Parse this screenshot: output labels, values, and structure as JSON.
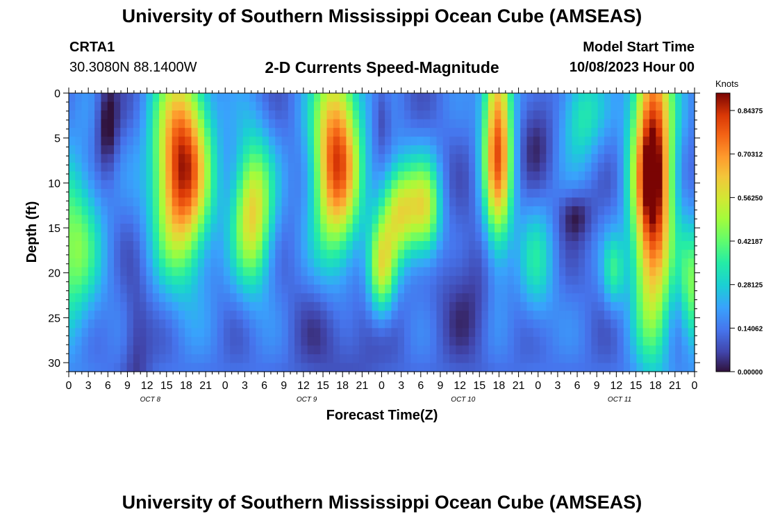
{
  "header": {
    "title": "University of Southern Mississippi Ocean Cube (AMSEAS)",
    "station": "CRTA1",
    "coords": "30.3080N  88.1400W",
    "subtitle": "2-D Currents Speed-Magnitude",
    "model_start_label": "Model Start Time",
    "model_start_value": "10/08/2023 Hour 00"
  },
  "footer": {
    "title": "University of Southern Mississippi Ocean Cube (AMSEAS)"
  },
  "chart_data": {
    "type": "heatmap",
    "xlabel": "Forecast Time(Z)",
    "ylabel": "Depth (ft)",
    "xlim": [
      0,
      96
    ],
    "ylim": [
      0,
      31
    ],
    "y_ticks": [
      0,
      5,
      10,
      15,
      20,
      25,
      30
    ],
    "x_tick_labels": [
      "0",
      "3",
      "6",
      "9",
      "12",
      "15",
      "18",
      "21",
      "0",
      "3",
      "6",
      "9",
      "12",
      "15",
      "18",
      "21",
      "0",
      "3",
      "6",
      "9",
      "12",
      "15",
      "18",
      "21",
      "0",
      "3",
      "6",
      "9",
      "12",
      "15",
      "18",
      "21",
      "0"
    ],
    "day_labels": [
      "OCT 8",
      "OCT 9",
      "OCT 10",
      "OCT 11"
    ],
    "colorbar": {
      "units": "Knots",
      "tick_labels": [
        "0.84375",
        "0.70312",
        "0.56250",
        "0.42187",
        "0.28125",
        "0.14062",
        "0.00000"
      ],
      "tick_values": [
        0.84375,
        0.703125,
        0.5625,
        0.421875,
        0.28125,
        0.140625,
        0.0
      ],
      "range": [
        0,
        0.9
      ]
    },
    "features": [
      {
        "t": 0,
        "d": 17,
        "st": 3.0,
        "sd": 7,
        "a": 0.33
      },
      {
        "t": 5.5,
        "d": 3,
        "st": 1.2,
        "sd": 4,
        "a": -0.16
      },
      {
        "t": 10,
        "d": 28,
        "st": 1.5,
        "sd": 5,
        "a": -0.1
      },
      {
        "t": 17,
        "d": 8,
        "st": 3.0,
        "sd": 8,
        "a": 0.75
      },
      {
        "t": 28,
        "d": 13,
        "st": 2.2,
        "sd": 6,
        "a": 0.48
      },
      {
        "t": 41,
        "d": 7,
        "st": 2.6,
        "sd": 8,
        "a": 0.68
      },
      {
        "t": 42,
        "d": 27,
        "st": 5.0,
        "sd": 5,
        "a": -0.08
      },
      {
        "t": 48,
        "d": 20,
        "st": 1.5,
        "sd": 4,
        "a": 0.38
      },
      {
        "t": 51,
        "d": 13,
        "st": 2.2,
        "sd": 4,
        "a": 0.45
      },
      {
        "t": 55,
        "d": 13,
        "st": 1.6,
        "sd": 4,
        "a": 0.35
      },
      {
        "t": 48,
        "d": 2,
        "st": 1.0,
        "sd": 3,
        "a": -0.1
      },
      {
        "t": 62,
        "d": 22,
        "st": 4.0,
        "sd": 6,
        "a": -0.08
      },
      {
        "t": 66,
        "d": 5,
        "st": 1.6,
        "sd": 9,
        "a": 0.65
      },
      {
        "t": 72,
        "d": 4,
        "st": 2.0,
        "sd": 4,
        "a": -0.1
      },
      {
        "t": 72,
        "d": 19,
        "st": 2.0,
        "sd": 5,
        "a": 0.18
      },
      {
        "t": 78,
        "d": 13.5,
        "st": 1.8,
        "sd": 2,
        "a": -0.12
      },
      {
        "t": 79,
        "d": 2,
        "st": 2.4,
        "sd": 4,
        "a": 0.22
      },
      {
        "t": 84,
        "d": 20,
        "st": 1.2,
        "sd": 3,
        "a": 0.2
      },
      {
        "t": 90,
        "d": 9,
        "st": 2.2,
        "sd": 12,
        "a": 0.85
      },
      {
        "t": 96,
        "d": 22,
        "st": 1.2,
        "sd": 5,
        "a": 0.3
      }
    ]
  }
}
